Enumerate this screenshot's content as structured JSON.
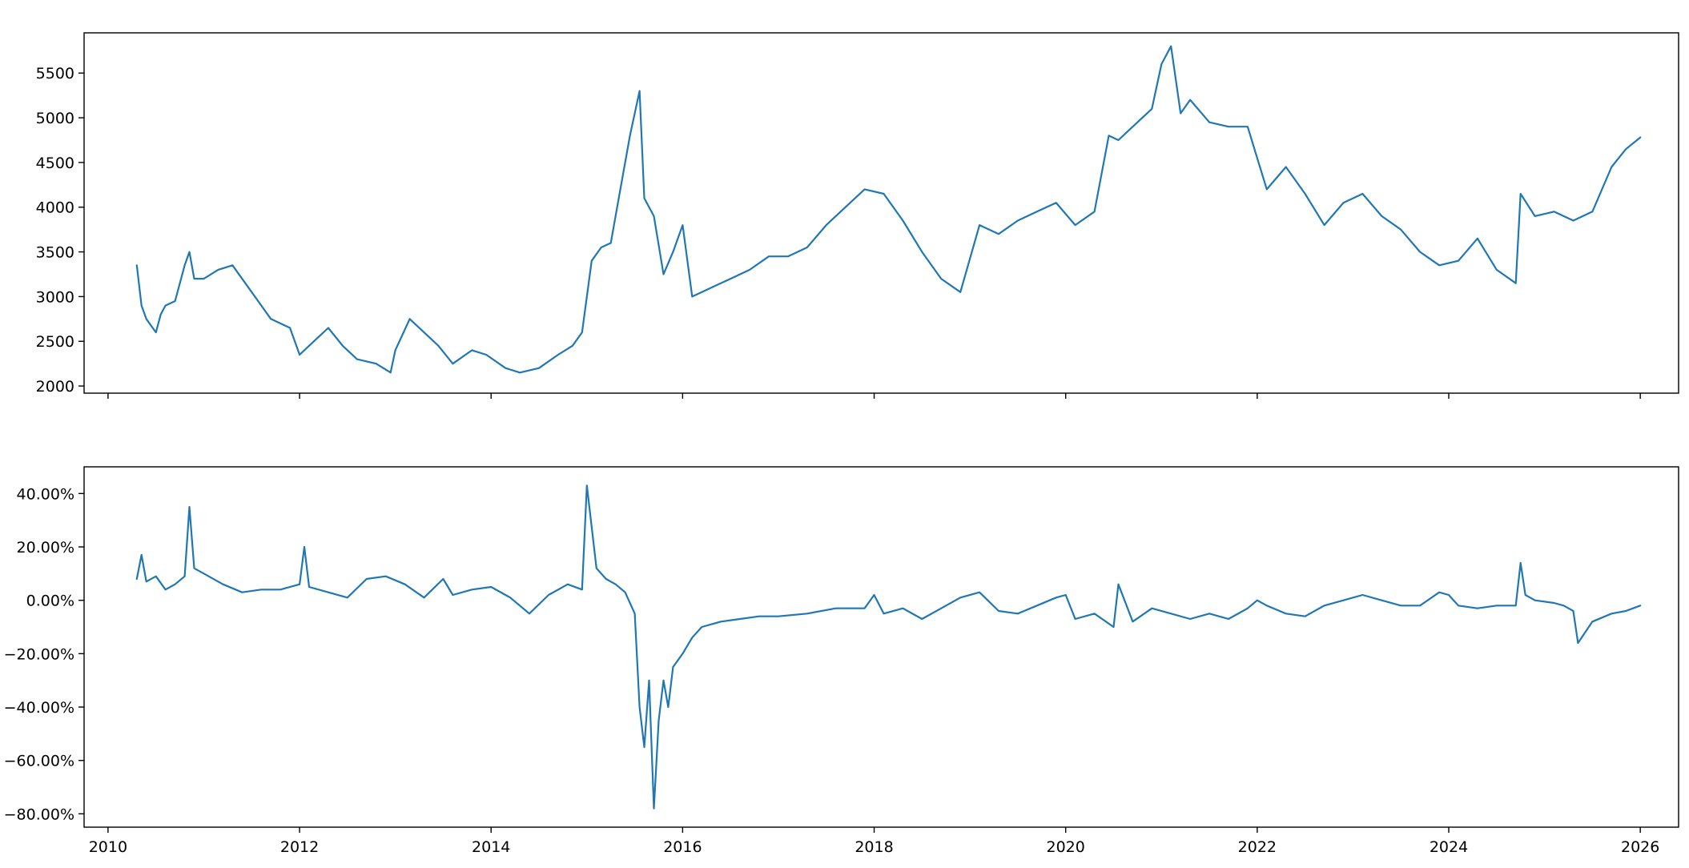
{
  "chart_data": [
    {
      "type": "line",
      "title": "",
      "xlabel": "",
      "ylabel": "",
      "xlim": [
        2009.75,
        2026.4
      ],
      "ylim": [
        1920,
        5950
      ],
      "yticks": [
        2000,
        2500,
        3000,
        3500,
        4000,
        4500,
        5000,
        5500
      ],
      "ytick_labels": [
        "2000",
        "2500",
        "3000",
        "3500",
        "4000",
        "4500",
        "5000",
        "5500"
      ],
      "xticks": [
        2010,
        2012,
        2014,
        2016,
        2018,
        2020,
        2022,
        2024,
        2026
      ],
      "xtick_labels_shown": false,
      "grid": false,
      "color": "#1f77b4",
      "series": [
        {
          "x": [
            2010.3,
            2010.35,
            2010.4,
            2010.5,
            2010.55,
            2010.6,
            2010.7,
            2010.8,
            2010.85,
            2010.9,
            2011.0,
            2011.15,
            2011.3,
            2011.5,
            2011.7,
            2011.9,
            2012.0,
            2012.15,
            2012.3,
            2012.45,
            2012.6,
            2012.8,
            2012.95,
            2013.0,
            2013.15,
            2013.3,
            2013.45,
            2013.6,
            2013.8,
            2013.95,
            2014.15,
            2014.3,
            2014.5,
            2014.7,
            2014.85,
            2014.95,
            2015.05,
            2015.15,
            2015.25,
            2015.35,
            2015.45,
            2015.55,
            2015.6,
            2015.7,
            2015.8,
            2015.9,
            2016.0,
            2016.1,
            2016.3,
            2016.5,
            2016.7,
            2016.9,
            2017.1,
            2017.3,
            2017.5,
            2017.7,
            2017.9,
            2018.1,
            2018.3,
            2018.5,
            2018.7,
            2018.9,
            2019.1,
            2019.3,
            2019.5,
            2019.7,
            2019.9,
            2020.1,
            2020.3,
            2020.45,
            2020.55,
            2020.7,
            2020.9,
            2021.0,
            2021.1,
            2021.2,
            2021.3,
            2021.5,
            2021.7,
            2021.9,
            2022.0,
            2022.1,
            2022.3,
            2022.5,
            2022.7,
            2022.9,
            2023.1,
            2023.3,
            2023.5,
            2023.7,
            2023.9,
            2024.1,
            2024.3,
            2024.5,
            2024.7,
            2024.75,
            2024.9,
            2025.1,
            2025.3,
            2025.5,
            2025.7,
            2025.85,
            2026.0
          ],
          "y": [
            3350,
            2900,
            2750,
            2600,
            2800,
            2900,
            2950,
            3350,
            3500,
            3200,
            3200,
            3300,
            3350,
            3050,
            2750,
            2650,
            2350,
            2500,
            2650,
            2450,
            2300,
            2250,
            2150,
            2400,
            2750,
            2600,
            2450,
            2250,
            2400,
            2350,
            2200,
            2150,
            2200,
            2350,
            2450,
            2600,
            3400,
            3550,
            3600,
            4200,
            4800,
            5300,
            4100,
            3900,
            3250,
            3500,
            3800,
            3000,
            3100,
            3200,
            3300,
            3450,
            3450,
            3550,
            3800,
            4000,
            4200,
            4150,
            3850,
            3500,
            3200,
            3050,
            3800,
            3700,
            3850,
            3950,
            4050,
            3800,
            3950,
            4800,
            4750,
            4900,
            5100,
            5600,
            5800,
            5050,
            5200,
            4950,
            4900,
            4900,
            4550,
            4200,
            4450,
            4150,
            3800,
            4050,
            4150,
            3900,
            3750,
            3500,
            3350,
            3400,
            3650,
            3300,
            3150,
            4150,
            3900,
            3950,
            3850,
            3950,
            4450,
            4650,
            4780
          ]
        }
      ]
    },
    {
      "type": "line",
      "title": "",
      "xlabel": "",
      "ylabel": "",
      "xlim": [
        2009.75,
        2026.4
      ],
      "ylim": [
        -85,
        50
      ],
      "yticks": [
        40,
        20,
        0,
        -20,
        -40,
        -60,
        -80
      ],
      "ytick_labels": [
        "40.00%",
        "20.00%",
        "0.00%",
        "−20.00%",
        "−40.00%",
        "−60.00%",
        "−80.00%"
      ],
      "xticks": [
        2010,
        2012,
        2014,
        2016,
        2018,
        2020,
        2022,
        2024,
        2026
      ],
      "xtick_labels": [
        "2010",
        "2012",
        "2014",
        "2016",
        "2018",
        "2020",
        "2022",
        "2024",
        "2026"
      ],
      "grid": false,
      "color": "#1f77b4",
      "series": [
        {
          "x": [
            2010.3,
            2010.35,
            2010.4,
            2010.5,
            2010.6,
            2010.7,
            2010.8,
            2010.85,
            2010.9,
            2011.0,
            2011.2,
            2011.4,
            2011.6,
            2011.8,
            2012.0,
            2012.05,
            2012.1,
            2012.3,
            2012.5,
            2012.7,
            2012.9,
            2013.1,
            2013.3,
            2013.5,
            2013.6,
            2013.8,
            2014.0,
            2014.2,
            2014.4,
            2014.6,
            2014.8,
            2014.95,
            2015.0,
            2015.1,
            2015.2,
            2015.3,
            2015.4,
            2015.5,
            2015.55,
            2015.6,
            2015.65,
            2015.7,
            2015.75,
            2015.8,
            2015.85,
            2015.9,
            2016.0,
            2016.1,
            2016.2,
            2016.4,
            2016.6,
            2016.8,
            2017.0,
            2017.3,
            2017.6,
            2017.9,
            2018.0,
            2018.1,
            2018.3,
            2018.5,
            2018.7,
            2018.9,
            2019.1,
            2019.3,
            2019.5,
            2019.7,
            2019.9,
            2020.0,
            2020.1,
            2020.3,
            2020.5,
            2020.55,
            2020.7,
            2020.9,
            2021.1,
            2021.3,
            2021.5,
            2021.7,
            2021.9,
            2022.0,
            2022.1,
            2022.3,
            2022.5,
            2022.7,
            2022.9,
            2023.1,
            2023.3,
            2023.5,
            2023.7,
            2023.9,
            2024.0,
            2024.1,
            2024.3,
            2024.5,
            2024.7,
            2024.75,
            2024.8,
            2024.9,
            2025.1,
            2025.2,
            2025.3,
            2025.35,
            2025.5,
            2025.7,
            2025.85,
            2026.0
          ],
          "y": [
            8,
            17,
            7,
            9,
            4,
            6,
            9,
            35,
            12,
            10,
            6,
            3,
            4,
            4,
            6,
            20,
            5,
            3,
            1,
            8,
            9,
            6,
            1,
            8,
            2,
            4,
            5,
            1,
            -5,
            2,
            6,
            4,
            43,
            12,
            8,
            6,
            3,
            -5,
            -40,
            -55,
            -30,
            -78,
            -45,
            -30,
            -40,
            -25,
            -20,
            -14,
            -10,
            -8,
            -7,
            -6,
            -6,
            -5,
            -3,
            -3,
            2,
            -5,
            -3,
            -7,
            -3,
            1,
            3,
            -4,
            -5,
            -2,
            1,
            2,
            -7,
            -5,
            -10,
            6,
            -8,
            -3,
            -5,
            -7,
            -5,
            -7,
            -3,
            0,
            -2,
            -5,
            -6,
            -2,
            0,
            2,
            0,
            -2,
            -2,
            3,
            2,
            -2,
            -3,
            -2,
            -2,
            14,
            2,
            0,
            -1,
            -2,
            -4,
            -16,
            -8,
            -5,
            -4,
            -2
          ]
        }
      ]
    }
  ]
}
